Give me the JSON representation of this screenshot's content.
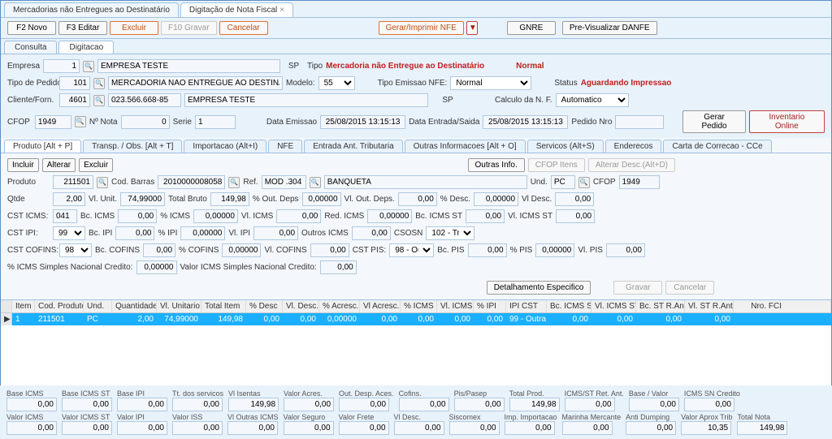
{
  "mainTabs": {
    "t1": "Mercadorias não Entregues ao Destinatário",
    "t2": "Digitação de Nota Fiscal"
  },
  "toolbar": {
    "novo": "F2 Novo",
    "editar": "F3 Editar",
    "excluir": "Excluir",
    "gravar": "F10 Gravar",
    "cancelar": "Cancelar",
    "gerar": "Gerar/Imprimir NFE",
    "gnre": "GNRE",
    "danfe": "Pre-Visualizar DANFE"
  },
  "subTabs": {
    "consulta": "Consulta",
    "digitacao": "Digitacao"
  },
  "header": {
    "empresaLbl": "Empresa",
    "empresaId": "1",
    "empresaNome": "EMPRESA TESTE",
    "uf": "SP",
    "tipoLbl": "Tipo",
    "tipoVal": "Mercadoria não Entregue ao Destinatário",
    "normal": "Normal",
    "tipoPedidoLbl": "Tipo de Pedido",
    "tipoPedidoId": "101",
    "tipoPedidoDesc": "MERCADORIA NAO ENTREGUE AO DESTINATARIO",
    "modeloLbl": "Modelo:",
    "modeloVal": "55",
    "tipoEmissaoLbl": "Tipo Emissao NFE:",
    "tipoEmissaoVal": "Normal",
    "statusLbl": "Status",
    "statusVal": "Aguardando Impressao",
    "clienteLbl": "Cliente/Forn.",
    "clienteId": "4601",
    "clienteDoc": "023.566.668-85",
    "clienteNome": "EMPRESA TESTE",
    "clienteUf": "SP",
    "calcNfLbl": "Calculo da N. F.",
    "calcNfVal": "Automatico",
    "cfopLbl": "CFOP",
    "cfopVal": "1949",
    "nNotaLbl": "Nº Nota",
    "nNotaVal": "0",
    "serieLbl": "Serie",
    "serieVal": "1",
    "dataEmissaoLbl": "Data Emissao",
    "dataEmissaoVal": "25/08/2015 13:15:13",
    "dataEntradaLbl": "Data Entrada/Saida",
    "dataEntradaVal": "25/08/2015 13:15:13",
    "pedidoNroLbl": "Pedido Nro",
    "gerarPedido": "Gerar Pedido",
    "inventario": "Inventario Online"
  },
  "secTabs": {
    "t1": "Produto [Alt + P]",
    "t2": "Transp. / Obs. [Alt + T]",
    "t3": "Importacao (Alt+I)",
    "t4": "NFE",
    "t5": "Entrada Ant. Tributaria",
    "t6": "Outras Informacoes [Alt + O]",
    "t7": "Servicos (Alt+S)",
    "t8": "Enderecos",
    "t9": "Carta de Correcao - CCe"
  },
  "prodBtns": {
    "incluir": "Incluir",
    "alterar": "Alterar",
    "excluir": "Excluir",
    "outras": "Outras Info.",
    "cfopItens": "CFOP Itens",
    "altDesc": "Alterar Desc.(Alt+D)"
  },
  "prod": {
    "prodLbl": "Produto",
    "prodId": "211501",
    "codBarrasLbl": "Cod. Barras",
    "codBarras": "2010000008058",
    "refLbl": "Ref.",
    "refVal": "MOD .304",
    "desc": "BANQUETA",
    "undLbl": "Und.",
    "undVal": "PC",
    "cfopLbl2": "CFOP",
    "cfopVal2": "1949",
    "qtdeLbl": "Qtde",
    "qtde": "2,00",
    "vlUnitLbl": "Vl. Unit.",
    "vlUnit": "74,99000",
    "totalBrutoLbl": "Total Bruto",
    "totalBruto": "149,98",
    "pOutDepsLbl": "% Out. Deps",
    "pOutDeps": "0,00000",
    "vlOutDepsLbl": "Vl. Out. Deps.",
    "vlOutDeps": "0,00",
    "pDescLbl": "% Desc.",
    "pDesc": "0,00000",
    "vlDescLbl": "Vl Desc.",
    "vlDesc": "0,00",
    "cstIcmsLbl": "CST ICMS:",
    "cstIcms": "041",
    "bcIcmsLbl": "Bc. ICMS",
    "bcIcms": "0,00",
    "pIcmsLbl": "% ICMS",
    "pIcms": "0,00000",
    "vlIcmsLbl": "Vl. ICMS",
    "vlIcms": "0,00",
    "redIcmsLbl": "Red. ICMS",
    "redIcms": "0,00000",
    "bcIcmsStLbl": "Bc. ICMS ST",
    "bcIcmsSt": "0,00",
    "vlIcmsStLbl": "Vl. ICMS ST",
    "vlIcmsSt": "0,00",
    "cstIpiLbl": "CST IPI:",
    "cstIpi": "99 -",
    "bcIpiLbl": "Bc. IPI",
    "bcIpi": "0,00",
    "pIpiLbl": "% IPI",
    "pIpi": "0,00000",
    "vlIpiLbl": "Vl. IPI",
    "vlIpi": "0,00",
    "outrosIcmsLbl": "Outros ICMS",
    "outrosIcms": "0,00",
    "csosnLbl": "CSOSN",
    "csosn": "102 - Tri",
    "cstCofLbl": "CST COFINS:",
    "cstCof": "98 -",
    "bcCofLbl": "Bc. COFINS",
    "bcCof": "0,00",
    "pCofLbl": "% COFINS",
    "pCof": "0,00000",
    "vlCofLbl": "Vl. COFINS",
    "vlCof": "0,00",
    "cstPisLbl": "CST PIS:",
    "cstPis": "98 - Out",
    "bcPisLbl": "Bc. PIS",
    "bcPis": "0,00",
    "pPisLbl": "% PIS",
    "pPis": "0,00000",
    "vlPisLbl": "Vl. PIS",
    "vlPis": "0,00",
    "pSimplLbl": "% ICMS Simples Nacional Credito:",
    "pSimpl": "0,00000",
    "vlSimplLbl": "Valor ICMS Simples Nacional Credito:",
    "vlSimpl": "0,00",
    "detEsp": "Detalhamento Especifico",
    "gravar": "Gravar",
    "cancelar": "Cancelar"
  },
  "gridH": {
    "item": "Item",
    "cod": "Cod. Produto",
    "und": "Und.",
    "qtd": "Quantidade",
    "vlu": "Vl. Unitario",
    "tot": "Total Item",
    "pd": "% Desc",
    "vld": "Vl. Desc.",
    "pa": "% Acresc.",
    "vla": "Vl Acresc.",
    "picms": "% ICMS",
    "vlicms": "Vl. ICMS",
    "pipi": "% IPI",
    "ipicst": "IPI CST",
    "bcst": "Bc. ICMS ST",
    "vlst": "Vl. ICMS ST",
    "bcra": "Bc. ST R.Ant.",
    "vlra": "Vl. ST R.Ant.",
    "fci": "Nro. FCI"
  },
  "gridR": {
    "item": "1",
    "cod": "211501",
    "und": "PC",
    "qtd": "2,00",
    "vlu": "74,99000",
    "tot": "149,98",
    "pd": "0,00",
    "vld": "0,00",
    "pa": "0,00000",
    "vla": "0,00",
    "picms": "0,00",
    "vlicms": "0,00",
    "pipi": "0,00",
    "ipicst": "99 - Outra",
    "bcst": "0,00",
    "vlst": "0,00",
    "bcra": "0,00",
    "vlra": "0,00"
  },
  "tot": {
    "r1": {
      "bIcms": {
        "l": "Base ICMS",
        "v": "0,00"
      },
      "bIcmsSt": {
        "l": "Base ICMS ST",
        "v": "0,00"
      },
      "bIpi": {
        "l": "Base IPI",
        "v": "0,00"
      },
      "ttServ": {
        "l": "Tt. dos servicos",
        "v": "0,00"
      },
      "vlIsen": {
        "l": "Vl Isentas",
        "v": "149,98"
      },
      "vlAcr": {
        "l": "Valor Acres.",
        "v": "0,00"
      },
      "outDesp": {
        "l": "Out. Desp. Aces.",
        "v": "0,00"
      },
      "cofins": {
        "l": "Cofins.",
        "v": "0,00"
      },
      "pisPasep": {
        "l": "Pis/Pasep",
        "v": "0,00"
      },
      "totProd": {
        "l": "Total Prod.",
        "v": "149,98"
      },
      "icmsStRet": {
        "l": "ICMS/ST Ret. Ant.",
        "v": "0,00"
      },
      "baseValor": {
        "l": "Base / Valor",
        "v": "0,00"
      },
      "snCred": {
        "l": "ICMS SN Credito",
        "v": "0,00"
      }
    },
    "r2": {
      "vIcms": {
        "l": "Valor ICMS",
        "v": "0,00"
      },
      "vIcmsSt": {
        "l": "Valor ICMS ST",
        "v": "0,00"
      },
      "vIpi": {
        "l": "Valor IPI",
        "v": "0,00"
      },
      "vIss": {
        "l": "Valor ISS",
        "v": "0,00"
      },
      "vOutIcms": {
        "l": "Vl Outras ICMS",
        "v": "0,00"
      },
      "vSeg": {
        "l": "Valor Seguro",
        "v": "0,00"
      },
      "vFrete": {
        "l": "Valor Frete",
        "v": "0,00"
      },
      "vDesc": {
        "l": "Vl Desc.",
        "v": "0,00"
      },
      "siscomex": {
        "l": "Siscomex",
        "v": "0,00"
      },
      "impImp": {
        "l": "Imp. Importacao",
        "v": "0,00"
      },
      "marinha": {
        "l": "Marinha Mercante",
        "v": "0,00"
      },
      "antiDump": {
        "l": "Anti Dumping",
        "v": "0,00"
      },
      "vAprox": {
        "l": "Valor Aprox Trib",
        "v": "10,35"
      },
      "totNota": {
        "l": "Total Nota",
        "v": "149,98"
      }
    }
  }
}
